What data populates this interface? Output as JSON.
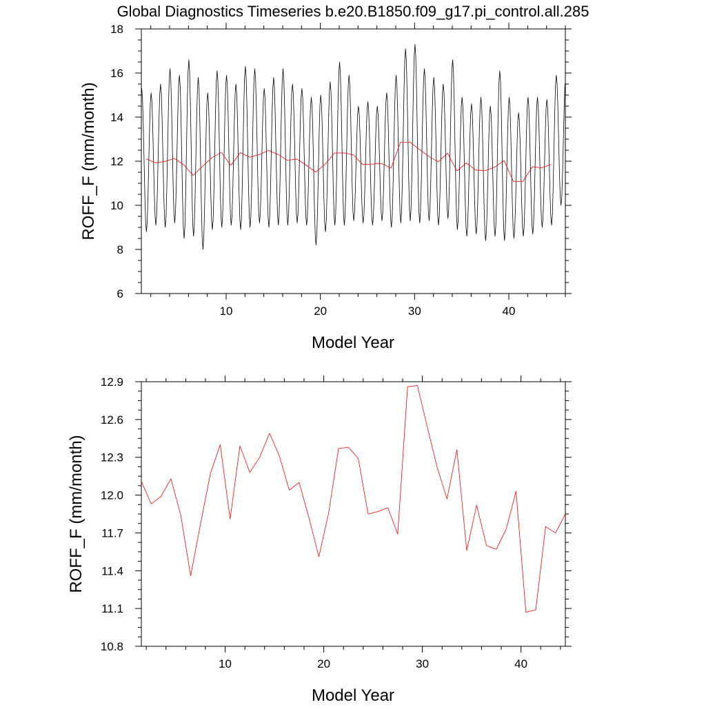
{
  "title": "Global Diagnostics Timeseries b.e20.B1850.f09_g17.pi_control.all.285",
  "colors": {
    "monthly": "#000000",
    "annual": "#ff0000",
    "axis": "#000000",
    "background": "#ffffff"
  },
  "chart_data": [
    {
      "type": "line",
      "xlabel": "Model Year",
      "ylabel": "ROFF_F (mm/month)",
      "xlim": [
        1,
        46
      ],
      "ylim": [
        6,
        18
      ],
      "xticks": [
        10,
        20,
        30,
        40
      ],
      "xtick_labels": [
        "10",
        "20",
        "30",
        "40"
      ],
      "yticks": [
        6,
        8,
        10,
        12,
        14,
        16,
        18
      ],
      "ytick_labels": [
        "6",
        "8",
        "10",
        "12",
        "14",
        "16",
        "18"
      ],
      "grid": false,
      "series": [
        {
          "style": "monthly",
          "x_start": 1.04,
          "x_step": 0.0833333,
          "annual_peaks": [
            15.3,
            15.1,
            15.5,
            16.2,
            15.9,
            16.6,
            15.8,
            15.1,
            16.1,
            15.9,
            15.5,
            16.3,
            16.2,
            15.3,
            15.8,
            16.2,
            15.5,
            15.3,
            14.9,
            15.0,
            15.6,
            16.5,
            15.9,
            14.5,
            14.7,
            14.5,
            15.1,
            15.9,
            17.1,
            17.3,
            16.2,
            15.8,
            15.5,
            16.6,
            14.9,
            14.6,
            14.9,
            14.5,
            16.1,
            14.9,
            14.2,
            14.9,
            14.9,
            14.8,
            15.9
          ],
          "annual_troughs": [
            8.8,
            9.1,
            9.0,
            9.2,
            8.5,
            8.6,
            8.0,
            8.9,
            9.0,
            9.1,
            8.9,
            9.0,
            9.2,
            9.0,
            9.1,
            9.1,
            9.2,
            9.1,
            8.2,
            8.8,
            9.1,
            9.1,
            9.3,
            9.2,
            9.1,
            9.3,
            9.0,
            9.2,
            9.3,
            9.2,
            9.3,
            9.1,
            9.4,
            8.9,
            8.6,
            8.7,
            8.4,
            8.6,
            8.4,
            8.5,
            8.6,
            8.7,
            9.0,
            9.1,
            10.0
          ]
        },
        {
          "style": "annual",
          "x": [
            1.5,
            2.5,
            3.5,
            4.5,
            5.5,
            6.5,
            7.5,
            8.5,
            9.5,
            10.5,
            11.5,
            12.5,
            13.5,
            14.5,
            15.5,
            16.5,
            17.5,
            18.5,
            19.5,
            20.5,
            21.5,
            22.5,
            23.5,
            24.5,
            25.5,
            26.5,
            27.5,
            28.5,
            29.5,
            30.5,
            31.5,
            32.5,
            33.5,
            34.5,
            35.5,
            36.5,
            37.5,
            38.5,
            39.5,
            40.5,
            41.5,
            42.5,
            43.5,
            44.5
          ],
          "values": [
            12.11,
            11.93,
            11.99,
            12.13,
            11.84,
            11.36,
            11.77,
            12.17,
            12.4,
            11.81,
            12.39,
            12.18,
            12.3,
            12.49,
            12.31,
            12.04,
            12.1,
            11.82,
            11.51,
            11.86,
            12.37,
            12.38,
            12.29,
            11.85,
            11.87,
            11.9,
            11.69,
            12.86,
            12.87,
            12.54,
            12.22,
            11.97,
            12.36,
            11.56,
            11.92,
            11.6,
            11.57,
            11.73,
            12.03,
            11.07,
            11.09,
            11.75,
            11.7,
            11.85
          ]
        }
      ]
    },
    {
      "type": "line",
      "xlabel": "Model Year",
      "ylabel": "ROFF_F (mm/month)",
      "xlim": [
        1.5,
        44.5
      ],
      "ylim": [
        10.8,
        12.9
      ],
      "xticks": [
        10,
        20,
        30,
        40
      ],
      "xtick_labels": [
        "10",
        "20",
        "30",
        "40"
      ],
      "yticks": [
        10.8,
        11.1,
        11.4,
        11.7,
        12.0,
        12.3,
        12.6,
        12.9
      ],
      "ytick_labels": [
        "10.8",
        "11.1",
        "11.4",
        "11.7",
        "12.0",
        "12.3",
        "12.6",
        "12.9"
      ],
      "grid": false,
      "series": [
        {
          "style": "annual",
          "x": [
            1.5,
            2.5,
            3.5,
            4.5,
            5.5,
            6.5,
            7.5,
            8.5,
            9.5,
            10.5,
            11.5,
            12.5,
            13.5,
            14.5,
            15.5,
            16.5,
            17.5,
            18.5,
            19.5,
            20.5,
            21.5,
            22.5,
            23.5,
            24.5,
            25.5,
            26.5,
            27.5,
            28.5,
            29.5,
            30.5,
            31.5,
            32.5,
            33.5,
            34.5,
            35.5,
            36.5,
            37.5,
            38.5,
            39.5,
            40.5,
            41.5,
            42.5,
            43.5,
            44.5
          ],
          "values": [
            12.11,
            11.93,
            11.99,
            12.13,
            11.84,
            11.36,
            11.77,
            12.17,
            12.4,
            11.81,
            12.39,
            12.18,
            12.3,
            12.49,
            12.31,
            12.04,
            12.1,
            11.82,
            11.51,
            11.86,
            12.37,
            12.38,
            12.29,
            11.85,
            11.87,
            11.9,
            11.69,
            12.86,
            12.87,
            12.54,
            12.22,
            11.97,
            12.36,
            11.56,
            11.92,
            11.6,
            11.57,
            11.73,
            12.03,
            11.07,
            11.09,
            11.75,
            11.7,
            11.85
          ]
        }
      ]
    }
  ]
}
